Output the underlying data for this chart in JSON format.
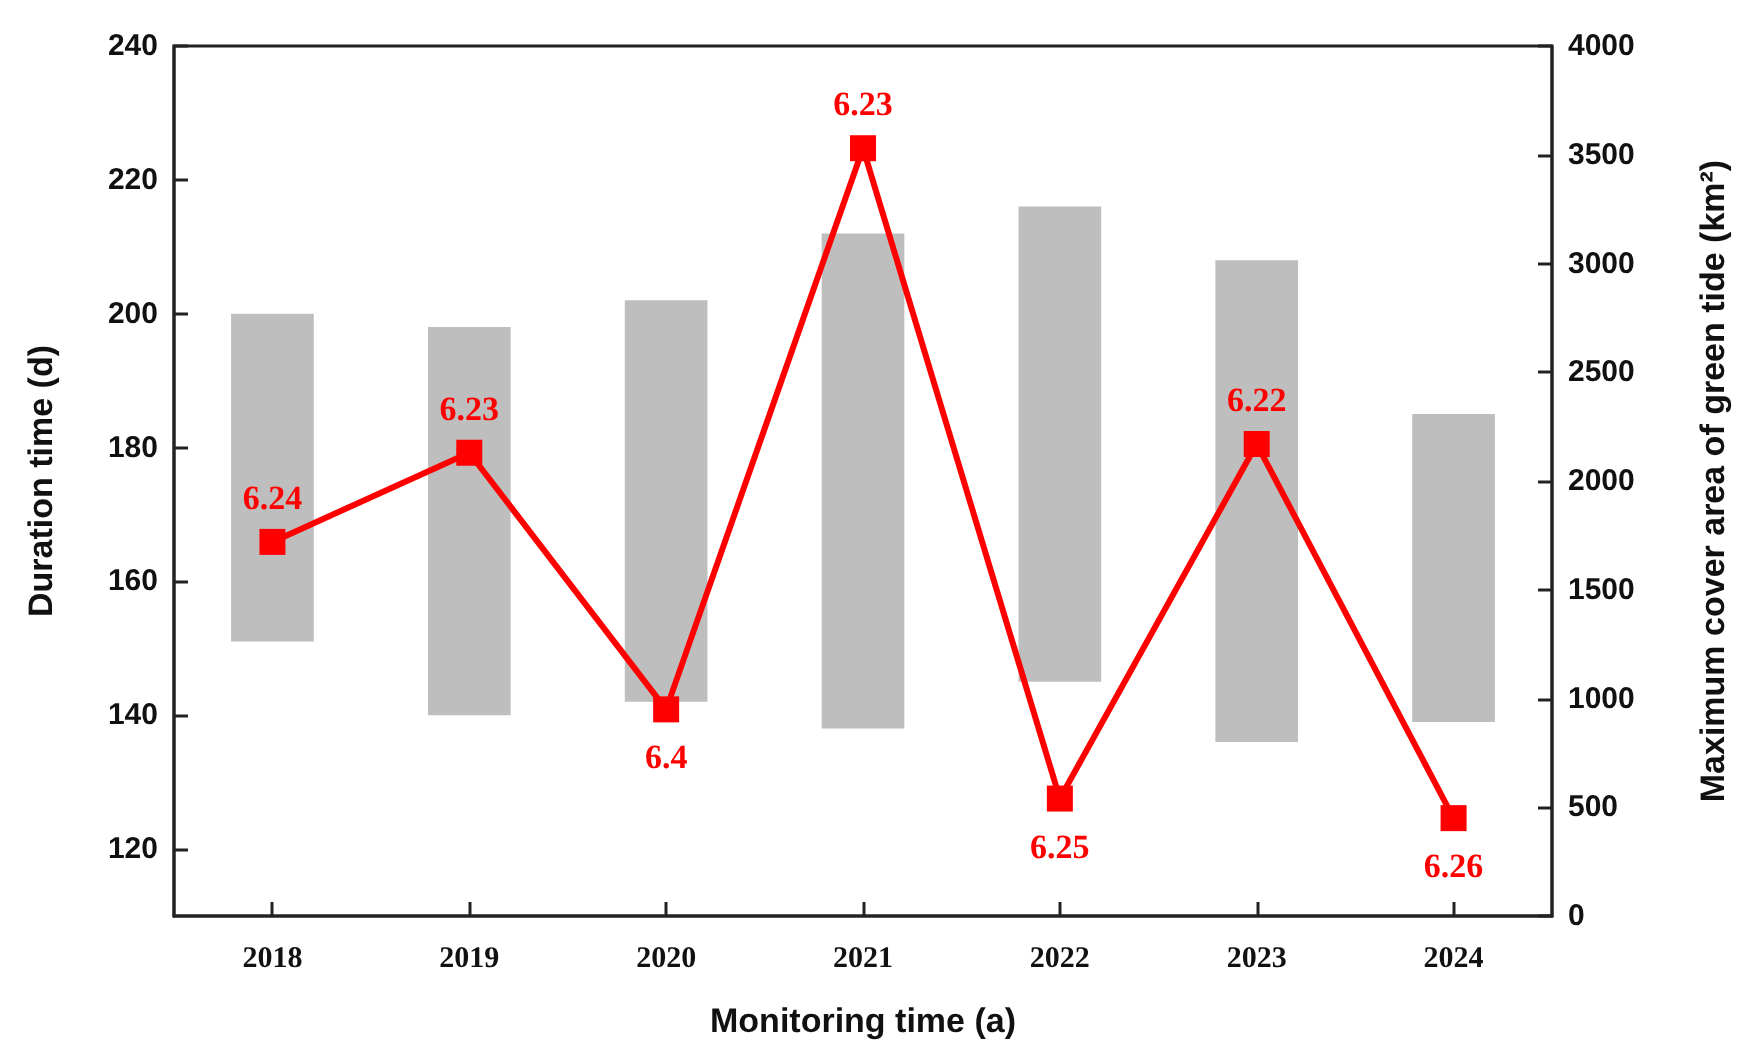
{
  "chart_data": {
    "type": "bar",
    "xlabel": "Monitoring time (a)",
    "ylabel": "Duration time (d)",
    "y2label": "Maximum cover area of green tide (km²)",
    "categories": [
      "2018",
      "2019",
      "2020",
      "2021",
      "2022",
      "2023",
      "2024"
    ],
    "ylim": [
      110,
      240
    ],
    "yticks": [
      120,
      140,
      160,
      180,
      200,
      220,
      240
    ],
    "y2lim": [
      0,
      4000
    ],
    "y2ticks": [
      0,
      500,
      1000,
      1500,
      2000,
      2500,
      3000,
      3500,
      4000
    ],
    "grid": false,
    "annotations": [
      "6.24",
      "6.23",
      "6.4",
      "6.23",
      "6.25",
      "6.22",
      "6.26"
    ],
    "series": [
      {
        "color": "#bebebe",
        "base": [
          151,
          140,
          142,
          138,
          145,
          136,
          139
        ],
        "values": [
          49,
          58,
          60,
          74,
          71,
          72,
          46
        ]
      },
      {
        "type": "line",
        "axis": "y2",
        "color": "#ff0000",
        "marker": "square",
        "line_style": "solid",
        "values": [
          1720,
          2130,
          950,
          3530,
          540,
          2170,
          450
        ]
      }
    ]
  }
}
